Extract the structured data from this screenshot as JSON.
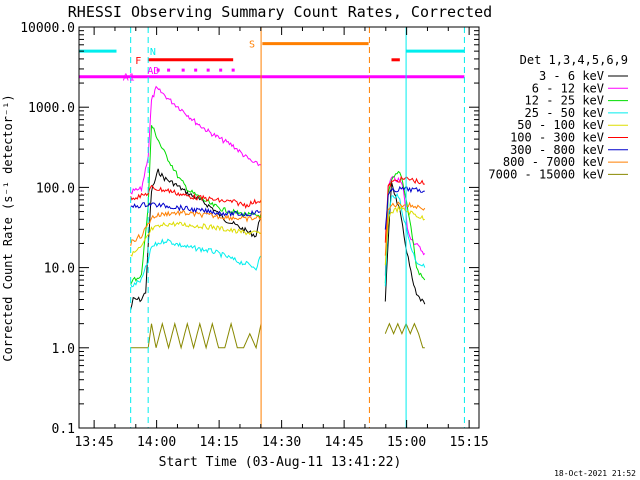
{
  "chart_data": {
    "type": "line",
    "title": "RHESSI Observing Summary Count Rates, Corrected",
    "xlabel": "Start Time (03-Aug-11 13:41:22)",
    "ylabel": "Corrected Count Rate (s⁻¹ detector⁻¹)",
    "x_unit": "minutes after 13:41:22",
    "xlim": [
      0,
      96
    ],
    "ylim": [
      0.1,
      10000
    ],
    "yscale": "log",
    "x_ticks": [
      {
        "x": 3.63,
        "label": "13:45"
      },
      {
        "x": 18.63,
        "label": "14:00"
      },
      {
        "x": 33.63,
        "label": "14:15"
      },
      {
        "x": 48.63,
        "label": "14:30"
      },
      {
        "x": 63.63,
        "label": "14:45"
      },
      {
        "x": 78.63,
        "label": "15:00"
      },
      {
        "x": 93.63,
        "label": "15:15"
      }
    ],
    "y_ticks": [
      {
        "y": 0.1,
        "label": "0.1"
      },
      {
        "y": 1,
        "label": "1.0"
      },
      {
        "y": 10,
        "label": "10.0"
      },
      {
        "y": 100,
        "label": "100.0"
      },
      {
        "y": 1000,
        "label": "1000.0"
      },
      {
        "y": 10000,
        "label": "10000.0"
      }
    ],
    "legend_title": "Det 1,3,4,5,6,9",
    "legend_position": "right",
    "series": [
      {
        "name": "3 - 6 keV",
        "color": "#000000",
        "segments": [
          {
            "x": [
              12.4,
              13.0,
              15.0,
              16.0,
              16.6,
              17.4,
              19.0,
              20.5,
              23.0,
              26.0,
              29.0,
              32.0,
              35.0,
              38.0,
              40.5,
              42.5,
              43.7
            ],
            "y": [
              3,
              4,
              4,
              5,
              18,
              90,
              160,
              130,
              110,
              85,
              70,
              55,
              40,
              33,
              28,
              25,
              48
            ]
          },
          {
            "x": [
              73.5,
              74.2,
              75.0,
              76.0,
              77.0,
              78.0,
              79.0,
              80.0,
              81.0,
              82.0,
              83.0
            ],
            "y": [
              4,
              20,
              120,
              75,
              50,
              25,
              13,
              7,
              4.5,
              4,
              3.5
            ]
          }
        ]
      },
      {
        "name": "6 - 12 keV",
        "color": "#ff00ff",
        "segments": [
          {
            "x": [
              12.4,
              13.0,
              15.0,
              16.6,
              17.4,
              18.5,
              20.0,
              22.0,
              25.0,
              28.0,
              31.0,
              34.0,
              37.0,
              40.0,
              42.0,
              43.7
            ],
            "y": [
              80,
              90,
              95,
              250,
              1200,
              1700,
              1500,
              1200,
              900,
              650,
              500,
              400,
              330,
              240,
              200,
              190
            ]
          },
          {
            "x": [
              73.5,
              74.2,
              75.0,
              76.0,
              77.0,
              77.6,
              78.2,
              78.8,
              80.0,
              81.5,
              83.0
            ],
            "y": [
              8,
              100,
              130,
              125,
              120,
              105,
              70,
              30,
              22,
              18,
              15
            ]
          }
        ]
      },
      {
        "name": "12 - 25 keV",
        "color": "#00dd00",
        "segments": [
          {
            "x": [
              12.4,
              13.0,
              15.0,
              16.6,
              17.4,
              18.5,
              20.0,
              22.0,
              24.0,
              26.5,
              29.0,
              32.0,
              35.0,
              38.0,
              41.0,
              43.7
            ],
            "y": [
              6,
              7,
              8,
              60,
              600,
              450,
              300,
              200,
              130,
              90,
              75,
              60,
              52,
              48,
              45,
              45
            ]
          },
          {
            "x": [
              73.5,
              74.2,
              75.0,
              76.0,
              77.0,
              78.0,
              79.0,
              80.0,
              81.0,
              82.0,
              83.0
            ],
            "y": [
              6,
              80,
              120,
              140,
              160,
              100,
              50,
              25,
              10,
              8,
              7
            ]
          }
        ]
      },
      {
        "name": "25 - 50 keV",
        "color": "#00eeee",
        "segments": [
          {
            "x": [
              12.4,
              13.0,
              15.0,
              16.6,
              17.4,
              19.0,
              21.0,
              23.0,
              26.0,
              29.0,
              32.0,
              35.0,
              38.0,
              40.5,
              42.5,
              43.7
            ],
            "y": [
              6,
              6,
              7,
              12,
              18,
              20,
              22,
              20,
              18,
              17,
              16,
              14,
              12,
              11,
              10,
              14
            ]
          },
          {
            "x": [
              73.5,
              74.2,
              75.0,
              76.0,
              77.0,
              78.0,
              79.0,
              80.0,
              81.0,
              82.0,
              83.0
            ],
            "y": [
              6,
              40,
              75,
              80,
              70,
              40,
              25,
              16,
              12,
              11,
              10
            ]
          }
        ]
      },
      {
        "name": "50 - 100 keV",
        "color": "#dddd00",
        "segments": [
          {
            "x": [
              12.4,
              13.0,
              15.0,
              16.6,
              17.4,
              19.0,
              21.0,
              23.0,
              26.0,
              29.0,
              32.0,
              35.0,
              38.0,
              41.0,
              43.7
            ],
            "y": [
              15,
              15,
              18,
              25,
              30,
              32,
              35,
              35,
              34,
              33,
              32,
              30,
              28,
              27,
              27
            ]
          },
          {
            "x": [
              73.5,
              74.2,
              75.0,
              77.0,
              79.0,
              81.0,
              83.0
            ],
            "y": [
              10,
              40,
              50,
              55,
              50,
              45,
              40
            ]
          }
        ]
      },
      {
        "name": "100 - 300 keV",
        "color": "#ff0000",
        "segments": [
          {
            "x": [
              12.4,
              13.0,
              15.0,
              16.6,
              17.4,
              19.0,
              22.0,
              25.0,
              28.0,
              31.0,
              34.0,
              37.0,
              40.0,
              43.7
            ],
            "y": [
              75,
              75,
              78,
              85,
              100,
              95,
              90,
              80,
              75,
              72,
              68,
              66,
              60,
              70
            ]
          },
          {
            "x": [
              73.5,
              74.2,
              75.0,
              77.0,
              79.0,
              81.0,
              83.0
            ],
            "y": [
              20,
              100,
              115,
              125,
              128,
              120,
              110
            ]
          }
        ]
      },
      {
        "name": "300 - 800 keV",
        "color": "#0000cc",
        "segments": [
          {
            "x": [
              12.4,
              13.0,
              15.0,
              16.6,
              17.4,
              19.0,
              22.0,
              25.0,
              28.0,
              31.0,
              34.0,
              37.0,
              40.0,
              43.7
            ],
            "y": [
              55,
              58,
              60,
              62,
              62,
              60,
              58,
              55,
              52,
              50,
              48,
              47,
              46,
              50
            ]
          },
          {
            "x": [
              73.5,
              74.2,
              75.0,
              77.0,
              79.0,
              81.0,
              83.0
            ],
            "y": [
              30,
              80,
              90,
              95,
              95,
              92,
              90
            ]
          }
        ]
      },
      {
        "name": "800 - 7000 keV",
        "color": "#ff7f00",
        "segments": [
          {
            "x": [
              12.4,
              13.0,
              15.0,
              16.6,
              17.4,
              19.0,
              22.0,
              25.0,
              28.0,
              31.0,
              34.0,
              37.0,
              40.0,
              43.7
            ],
            "y": [
              20,
              22,
              25,
              35,
              42,
              45,
              48,
              48,
              46,
              45,
              43,
              42,
              40,
              42
            ]
          },
          {
            "x": [
              73.5,
              74.2,
              75.0,
              77.0,
              79.0,
              81.0,
              83.0
            ],
            "y": [
              15,
              50,
              60,
              62,
              60,
              58,
              55
            ]
          }
        ]
      },
      {
        "name": "7000 - 15000 keV",
        "color": "#888800",
        "segments": [
          {
            "x": [
              12.4,
              14.0,
              15.5,
              16.6,
              17.4,
              18.5,
              20.0,
              21.5,
              23.0,
              24.5,
              26.0,
              27.5,
              29.0,
              30.5,
              32.0,
              33.5,
              35.0,
              36.5,
              38.0,
              39.5,
              41.0,
              42.5,
              43.7
            ],
            "y": [
              1,
              1,
              1,
              1,
              2,
              1,
              2,
              1,
              2,
              1,
              2,
              1,
              2,
              1,
              2,
              1,
              1,
              2,
              1,
              1,
              1.5,
              1,
              2
            ]
          },
          {
            "x": [
              73.5,
              74.5,
              75.5,
              76.5,
              77.5,
              78.5,
              79.5,
              80.5,
              81.5,
              82.5,
              83.0
            ],
            "y": [
              1.5,
              2,
              1.5,
              2,
              1.5,
              2,
              1.5,
              2,
              1.5,
              1,
              1
            ]
          }
        ]
      }
    ],
    "annotations": [
      {
        "label": "A1",
        "color": "#ff00ff",
        "y": 2400,
        "x_start": 0,
        "x_end": 92.5,
        "label_x": 10.5
      },
      {
        "label": "AD",
        "color": "#ff00ff",
        "y": 2900,
        "dots_x": [
          19.0,
          21.5,
          25.0,
          28.0,
          31.0,
          34.0,
          37.0
        ],
        "label_x": 16.4
      },
      {
        "label": "F",
        "color": "#ff0000",
        "y": 3900,
        "segments": [
          [
            16.6,
            37.0
          ],
          [
            75.0,
            77.0
          ]
        ],
        "label_x": 13.5
      },
      {
        "label": "S",
        "color": "#ff7f00",
        "y": 6200,
        "segments": [
          [
            44.0,
            69.5
          ]
        ],
        "label_x": 40.8
      },
      {
        "label": "N",
        "color": "#00eeee",
        "y": 5000,
        "segments": [
          [
            0,
            9.0
          ],
          [
            78.5,
            92.5
          ]
        ],
        "label_x": 17.0
      },
      {
        "label": "",
        "color": "#00eeee",
        "vline": true,
        "dashed": false,
        "x": 0
      },
      {
        "label": "",
        "color": "#00eeee",
        "vline": true,
        "dashed": true,
        "x": 12.4
      },
      {
        "label": "",
        "color": "#00eeee",
        "vline": true,
        "dashed": true,
        "x": 16.6
      },
      {
        "label": "",
        "color": "#ff7f00",
        "vline": true,
        "dashed": false,
        "x": 43.7
      },
      {
        "label": "",
        "color": "#ff7f00",
        "vline": true,
        "dashed": true,
        "x": 69.7
      },
      {
        "label": "",
        "color": "#00eeee",
        "vline": true,
        "dashed": false,
        "x": 78.5
      },
      {
        "label": "",
        "color": "#00eeee",
        "vline": true,
        "dashed": true,
        "x": 92.5
      }
    ]
  },
  "footer": {
    "timestamp": "18-Oct-2021 21:52"
  }
}
